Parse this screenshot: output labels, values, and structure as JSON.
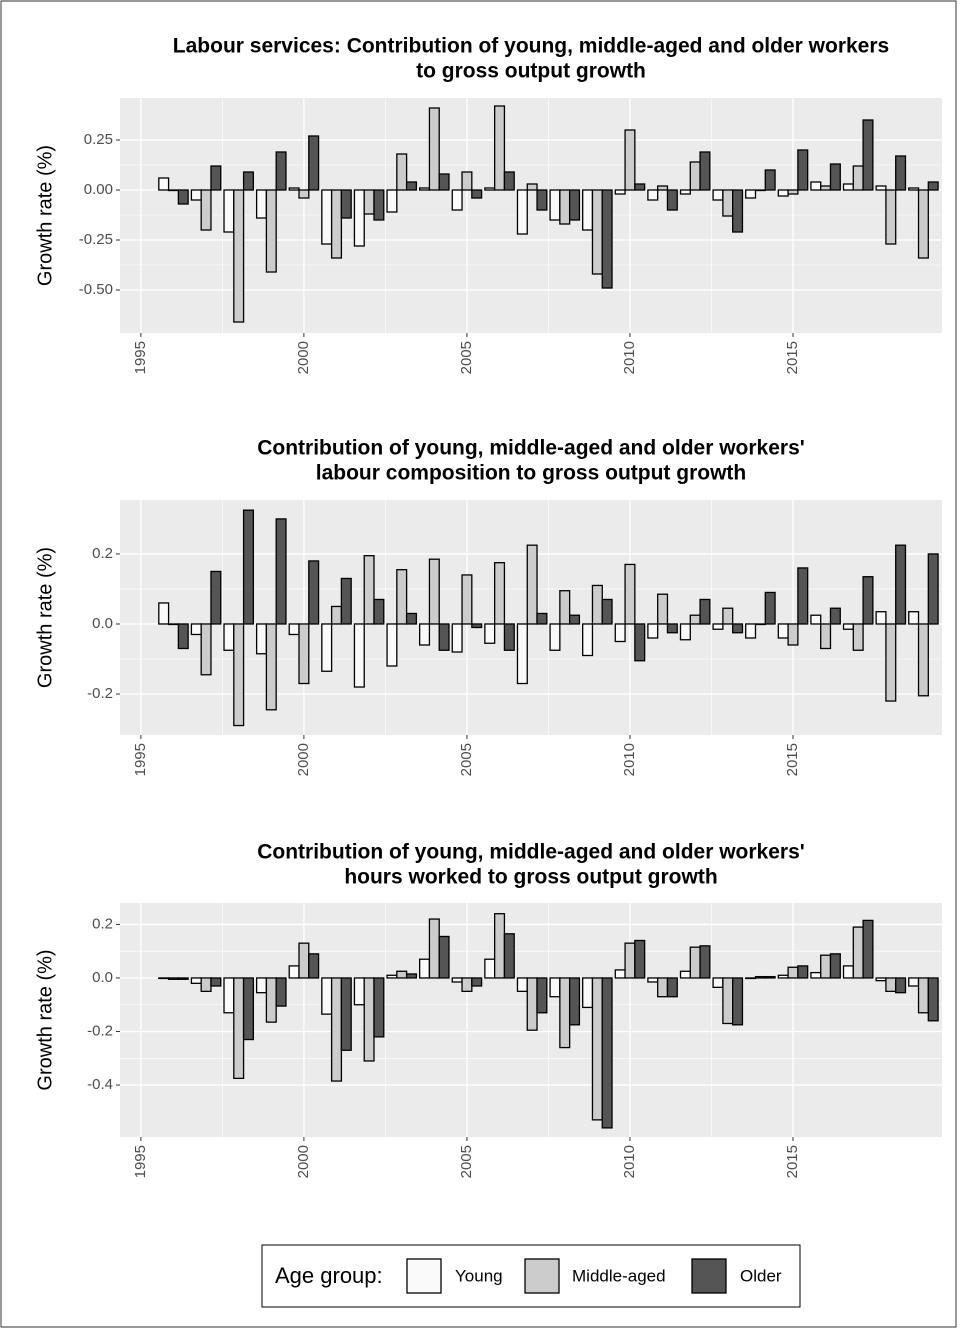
{
  "legend": {
    "title": "Age group:"
  },
  "chart_data": [
    {
      "type": "bar",
      "title": [
        "Labour services: Contribution of young, middle-aged and older workers",
        "to gross output growth"
      ],
      "ylabel": "Growth rate (%)",
      "x": [
        1996,
        1997,
        1998,
        1999,
        2000,
        2001,
        2002,
        2003,
        2004,
        2005,
        2006,
        2007,
        2008,
        2009,
        2010,
        2011,
        2012,
        2013,
        2014,
        2015,
        2016,
        2017,
        2018,
        2019
      ],
      "xlim": [
        1994.36,
        2019.57
      ],
      "xticks": [
        1995,
        2000,
        2005,
        2010,
        2015
      ],
      "ylim": [
        -0.715,
        0.46
      ],
      "yticks": [
        {
          "value": -0.5,
          "label": "-0.50"
        },
        -0.25,
        {
          "value": 0,
          "label": "0.00"
        },
        0.25
      ],
      "grid": true,
      "series": [
        {
          "name": "Young",
          "color": "#fafafa",
          "values": [
            0.06,
            -0.05,
            -0.21,
            -0.14,
            0.01,
            -0.27,
            -0.28,
            -0.11,
            0.01,
            -0.1,
            0.01,
            -0.22,
            -0.15,
            -0.2,
            -0.02,
            -0.05,
            -0.02,
            -0.05,
            -0.04,
            -0.03,
            0.04,
            0.03,
            0.02,
            0.01
          ]
        },
        {
          "name": "Middle-aged",
          "color": "#cccccc",
          "values": [
            0.0,
            -0.2,
            -0.66,
            -0.41,
            -0.04,
            -0.34,
            -0.12,
            0.18,
            0.41,
            0.09,
            0.42,
            0.03,
            -0.17,
            -0.42,
            0.3,
            0.02,
            0.14,
            -0.13,
            0.0,
            -0.02,
            0.02,
            0.12,
            -0.27,
            -0.34
          ]
        },
        {
          "name": "Older",
          "color": "#555555",
          "values": [
            -0.07,
            0.12,
            0.09,
            0.19,
            0.27,
            -0.14,
            -0.15,
            0.04,
            0.08,
            -0.04,
            0.09,
            -0.1,
            -0.15,
            -0.49,
            0.03,
            -0.1,
            0.19,
            -0.21,
            0.1,
            0.2,
            0.13,
            0.35,
            0.17,
            0.04
          ]
        }
      ]
    },
    {
      "type": "bar",
      "title": [
        "Contribution of young, middle-aged and older workers'",
        "labour composition to gross output growth"
      ],
      "ylabel": "Growth rate (%)",
      "x": [
        1996,
        1997,
        1998,
        1999,
        2000,
        2001,
        2002,
        2003,
        2004,
        2005,
        2006,
        2007,
        2008,
        2009,
        2010,
        2011,
        2012,
        2013,
        2014,
        2015,
        2016,
        2017,
        2018,
        2019
      ],
      "xlim": [
        1994.36,
        2019.57
      ],
      "xticks": [
        1995,
        2000,
        2005,
        2010,
        2015
      ],
      "ylim": [
        -0.317,
        0.354
      ],
      "yticks": [
        -0.2,
        {
          "value": 0,
          "label": "0.0"
        },
        0.2
      ],
      "grid": true,
      "series": [
        {
          "name": "Young",
          "color": "#fafafa",
          "values": [
            0.06,
            -0.03,
            -0.075,
            -0.085,
            -0.03,
            -0.135,
            -0.18,
            -0.12,
            -0.06,
            -0.08,
            -0.055,
            -0.17,
            -0.075,
            -0.09,
            -0.05,
            -0.04,
            -0.045,
            -0.015,
            -0.04,
            -0.04,
            0.025,
            -0.015,
            0.035,
            0.035
          ]
        },
        {
          "name": "Middle-aged",
          "color": "#cccccc",
          "values": [
            0.0,
            -0.145,
            -0.29,
            -0.245,
            -0.17,
            0.05,
            0.195,
            0.155,
            0.185,
            0.14,
            0.175,
            0.225,
            0.095,
            0.11,
            0.17,
            0.085,
            0.025,
            0.045,
            0.0,
            -0.06,
            -0.07,
            -0.075,
            -0.22,
            -0.205
          ]
        },
        {
          "name": "Older",
          "color": "#555555",
          "values": [
            -0.07,
            0.15,
            0.325,
            0.3,
            0.18,
            0.13,
            0.07,
            0.03,
            -0.075,
            -0.01,
            -0.075,
            0.03,
            0.025,
            0.07,
            -0.105,
            -0.025,
            0.07,
            -0.025,
            0.09,
            0.16,
            0.045,
            0.135,
            0.225,
            0.2
          ]
        }
      ]
    },
    {
      "type": "bar",
      "title": [
        "Contribution of young, middle-aged and older workers'",
        "hours worked to gross output growth"
      ],
      "ylabel": "Growth rate (%)",
      "x": [
        1996,
        1997,
        1998,
        1999,
        2000,
        2001,
        2002,
        2003,
        2004,
        2005,
        2006,
        2007,
        2008,
        2009,
        2010,
        2011,
        2012,
        2013,
        2014,
        2015,
        2016,
        2017,
        2018,
        2019
      ],
      "xlim": [
        1994.36,
        2019.57
      ],
      "xticks": [
        1995,
        2000,
        2005,
        2010,
        2015
      ],
      "ylim": [
        -0.594,
        0.28
      ],
      "yticks": [
        -0.4,
        -0.2,
        {
          "value": 0,
          "label": "0.0"
        },
        0.2
      ],
      "grid": true,
      "series": [
        {
          "name": "Young",
          "color": "#fafafa",
          "values": [
            0.0,
            -0.02,
            -0.13,
            -0.055,
            0.045,
            -0.135,
            -0.1,
            0.01,
            0.07,
            -0.015,
            0.07,
            -0.05,
            -0.07,
            -0.11,
            0.03,
            -0.015,
            0.025,
            -0.035,
            0.0,
            0.01,
            0.02,
            0.045,
            -0.01,
            -0.03
          ]
        },
        {
          "name": "Middle-aged",
          "color": "#cccccc",
          "values": [
            -0.005,
            -0.05,
            -0.375,
            -0.165,
            0.13,
            -0.385,
            -0.31,
            0.025,
            0.22,
            -0.05,
            0.24,
            -0.195,
            -0.26,
            -0.53,
            0.13,
            -0.07,
            0.115,
            -0.17,
            0.005,
            0.04,
            0.085,
            0.19,
            -0.05,
            -0.13
          ]
        },
        {
          "name": "Older",
          "color": "#555555",
          "values": [
            -0.005,
            -0.03,
            -0.23,
            -0.105,
            0.09,
            -0.27,
            -0.22,
            0.015,
            0.155,
            -0.03,
            0.165,
            -0.13,
            -0.175,
            -0.56,
            0.14,
            -0.07,
            0.12,
            -0.175,
            0.005,
            0.045,
            0.09,
            0.215,
            -0.055,
            -0.16
          ]
        }
      ]
    }
  ]
}
